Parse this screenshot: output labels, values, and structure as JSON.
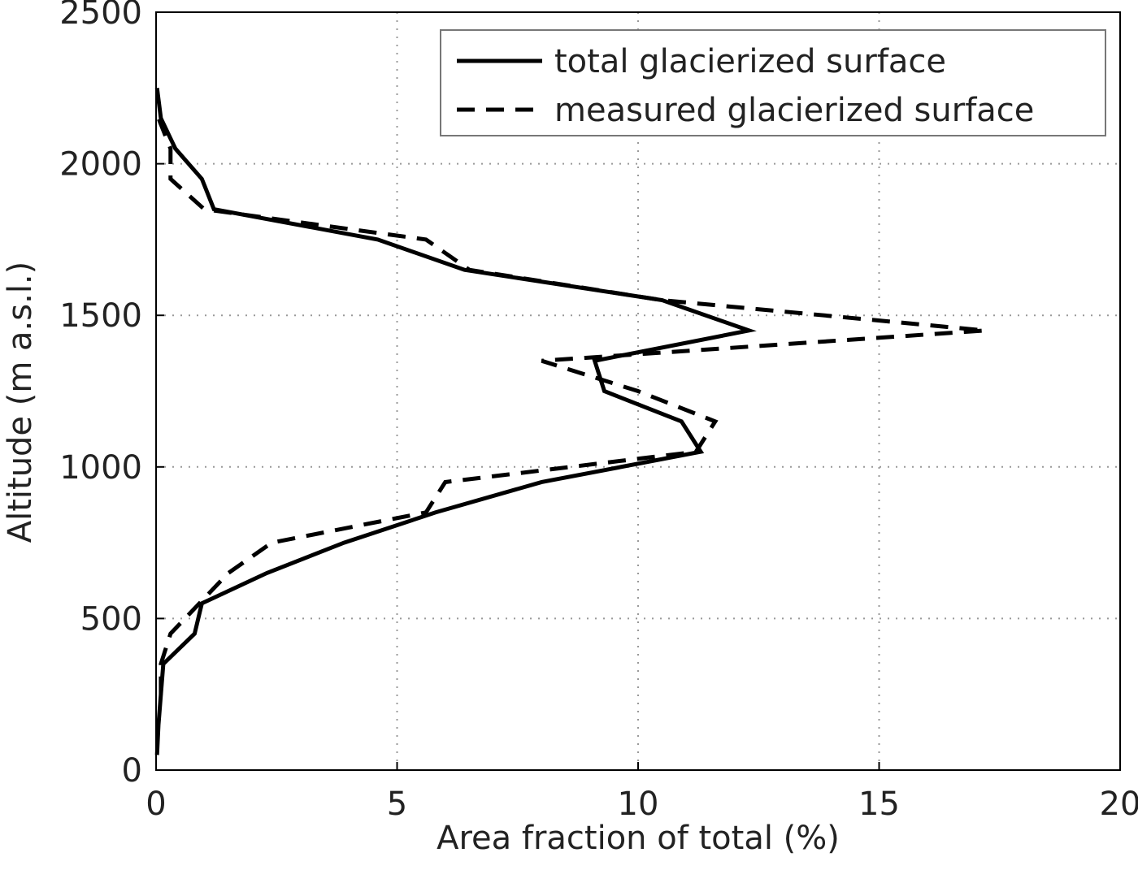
{
  "chart_data": {
    "type": "line",
    "xlabel": "Area fraction of total (%)",
    "ylabel": "Altitude (m a.s.l.)",
    "xlim": [
      0,
      20
    ],
    "xticks": [
      0,
      5,
      10,
      15,
      20
    ],
    "ylim": [
      0,
      2500
    ],
    "yticks": [
      0,
      500,
      1000,
      1500,
      2000,
      2500
    ],
    "grid": true,
    "legend": "upper right",
    "series": [
      {
        "name": "total glacierized surface",
        "color": "#000000",
        "dash": "solid",
        "x": [
          0.02,
          0.05,
          0.1,
          0.15,
          0.8,
          0.95,
          2.3,
          3.9,
          5.8,
          8,
          11.3,
          10.9,
          9.3,
          9.1,
          12.3,
          10.5,
          6.4,
          4.6,
          1.2,
          0.95,
          0.4,
          0.1,
          0.02
        ],
        "y": [
          50,
          150,
          250,
          350,
          450,
          550,
          650,
          750,
          850,
          950,
          1050,
          1150,
          1250,
          1350,
          1450,
          1550,
          1650,
          1750,
          1850,
          1950,
          2050,
          2150,
          2250
        ]
      },
      {
        "name": "measured glacierized surface",
        "color": "#000000",
        "dash": "dashed",
        "x": [
          0.1,
          0.1,
          0.3,
          0.9,
          1.5,
          2.4,
          5.6,
          6,
          11.2,
          11.6,
          10,
          8,
          17.2,
          10.5,
          6.5,
          5.6,
          1,
          0.3,
          0.3,
          0.05
        ],
        "y": [
          250,
          350,
          450,
          550,
          650,
          750,
          850,
          950,
          1050,
          1150,
          1250,
          1350,
          1450,
          1550,
          1650,
          1750,
          1850,
          1950,
          2050,
          2150
        ]
      }
    ]
  }
}
